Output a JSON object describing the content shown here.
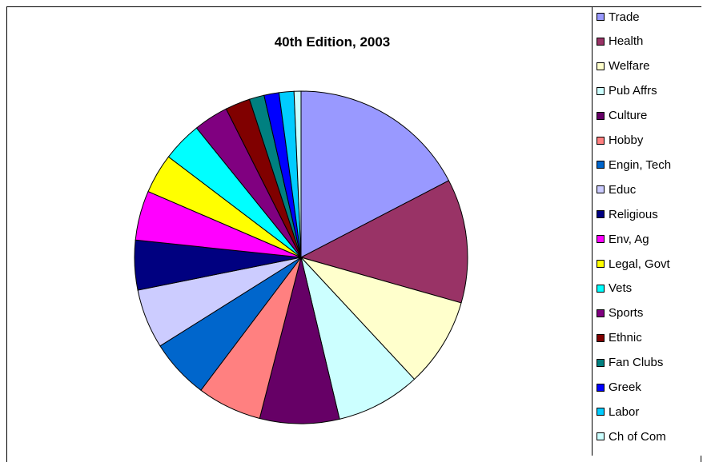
{
  "chart_data": {
    "type": "pie",
    "title": "40th Edition, 2003",
    "start_angle_deg": 0,
    "direction": "clockwise",
    "slices": [
      {
        "label": "Trade",
        "value": 18.0,
        "color": "#9999FF"
      },
      {
        "label": "Health",
        "value": 12.5,
        "color": "#993366"
      },
      {
        "label": "Welfare",
        "value": 9.0,
        "color": "#FFFFCC"
      },
      {
        "label": "Pub Affrs",
        "value": 8.5,
        "color": "#CCFFFF"
      },
      {
        "label": "Culture",
        "value": 8.0,
        "color": "#660066"
      },
      {
        "label": "Hobby",
        "value": 6.5,
        "color": "#FF8080"
      },
      {
        "label": "Engin, Tech",
        "value": 6.0,
        "color": "#0066CC"
      },
      {
        "label": "Educ",
        "value": 6.0,
        "color": "#CCCCFF"
      },
      {
        "label": "Religious",
        "value": 5.0,
        "color": "#000080"
      },
      {
        "label": "Env, Ag",
        "value": 5.0,
        "color": "#FF00FF"
      },
      {
        "label": "Legal, Govt",
        "value": 4.0,
        "color": "#FFFF00"
      },
      {
        "label": "Vets",
        "value": 4.0,
        "color": "#00FFFF"
      },
      {
        "label": "Sports",
        "value": 3.5,
        "color": "#800080"
      },
      {
        "label": "Ethnic",
        "value": 2.5,
        "color": "#800000"
      },
      {
        "label": "Fan Clubs",
        "value": 1.5,
        "color": "#008080"
      },
      {
        "label": "Greek",
        "value": 1.5,
        "color": "#0000FF"
      },
      {
        "label": "Labor",
        "value": 1.5,
        "color": "#00CCFF"
      },
      {
        "label": "Ch of Com",
        "value": 0.7,
        "color": "#CCFFFF"
      }
    ],
    "legend_position": "right"
  }
}
